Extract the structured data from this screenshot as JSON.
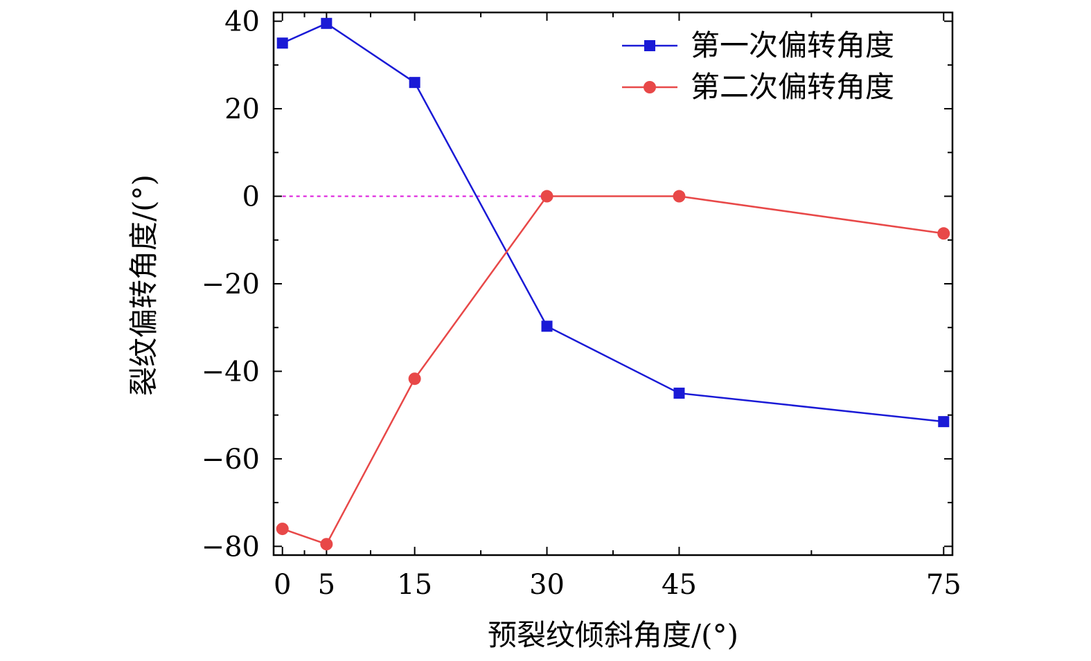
{
  "chart_data": {
    "type": "line",
    "xlabel": "预裂纹倾斜角度/(°)",
    "ylabel": "裂纹偏转角度/(°)",
    "xlim": [
      -1,
      76
    ],
    "ylim": [
      -82,
      42
    ],
    "x_ticks": [
      0,
      5,
      15,
      30,
      45,
      75
    ],
    "x_tick_labels": [
      "0",
      "5",
      "15",
      "30",
      "45",
      "75"
    ],
    "x_minor_ticks": [
      2.5,
      10,
      22.5,
      37.5,
      60
    ],
    "y_ticks": [
      -80,
      -60,
      -40,
      -20,
      0,
      20,
      40
    ],
    "y_tick_labels": [
      "−80",
      "−60",
      "−40",
      "−20",
      "0",
      "20",
      "40"
    ],
    "y_minor_ticks": [
      -70,
      -50,
      -30,
      -10,
      10,
      30
    ],
    "x": [
      0,
      5,
      15,
      30,
      45,
      75
    ],
    "series": [
      {
        "name": "第一次偏转角度",
        "values": [
          35,
          39.5,
          26,
          -29.7,
          -45,
          -51.5
        ],
        "color": "#1a1ad6",
        "marker": "square"
      },
      {
        "name": "第二次偏转角度",
        "values": [
          -76,
          -79.5,
          -41.7,
          0,
          0,
          -8.5
        ],
        "color": "#e84848",
        "marker": "circle"
      }
    ],
    "reference_line": {
      "y": 0,
      "x_range": [
        0,
        30
      ],
      "color": "#dd22dd",
      "style": "dotted"
    },
    "legend_position": "top-right",
    "grid": false
  }
}
